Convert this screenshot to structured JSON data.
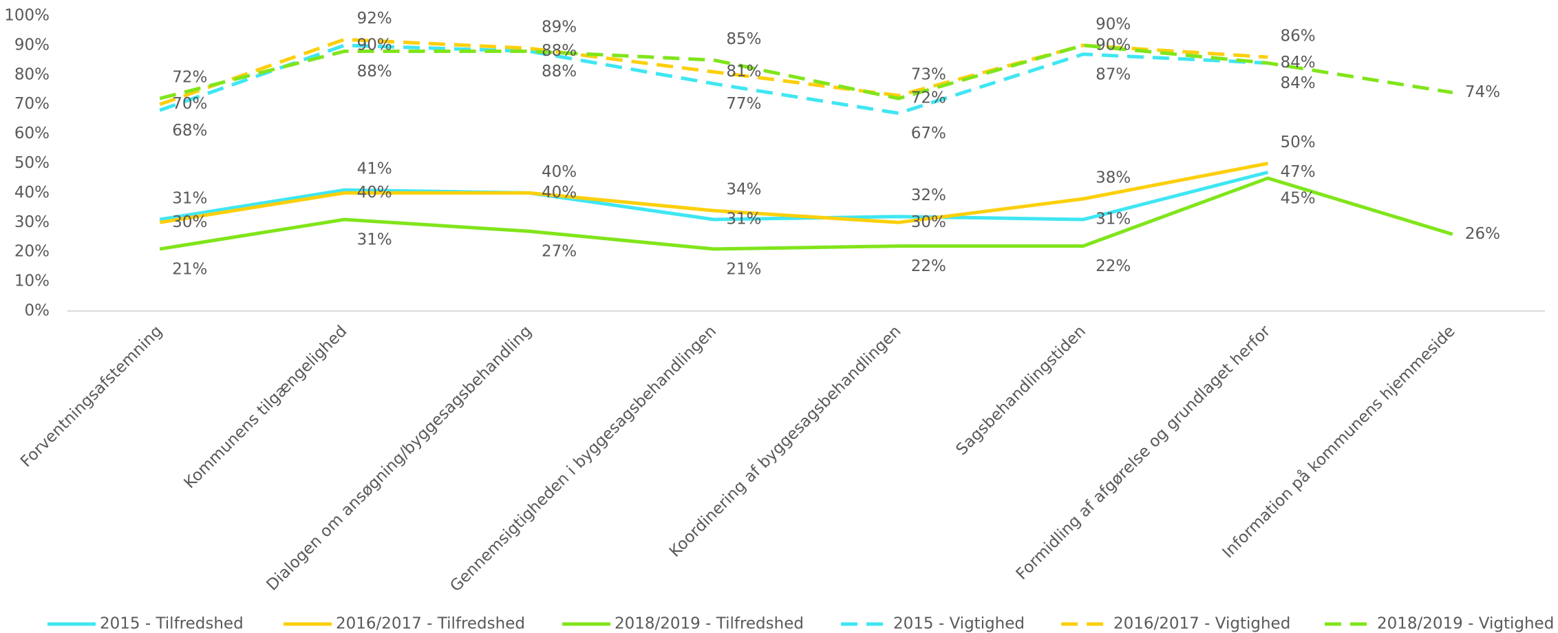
{
  "chart_data": {
    "type": "line",
    "categories": [
      "Forventningsafstemning",
      "Kommunens tilgængelighed",
      "Dialogen om ansøgning/byggesagsbehandling",
      "Gennemsigtigheden i byggesagsbehandlingen",
      "Koordinering af byggesagsbehandlingen",
      "Sagsbehandlingstiden",
      "Formidling af afgørelse og grundlaget herfor",
      "Information på kommunens hjemmeside"
    ],
    "series": [
      {
        "name": "2015 - Tilfredshed",
        "color": "#3fe6f2",
        "dashed": false,
        "values": [
          31,
          41,
          40,
          31,
          32,
          31,
          47,
          null
        ],
        "value_labels": [
          "31%",
          "41%",
          "40%",
          "31%",
          "32%",
          "31%",
          "47%",
          null
        ]
      },
      {
        "name": "2016/2017 - Tilfredshed",
        "color": "#fccf0b",
        "dashed": false,
        "values": [
          30,
          40,
          40,
          34,
          30,
          38,
          50,
          null
        ],
        "value_labels": [
          "30%",
          "40%",
          "40%",
          "34%",
          "30%",
          "38%",
          "50%",
          null
        ]
      },
      {
        "name": "2018/2019 - Tilfredshed",
        "color": "#80e51a",
        "dashed": false,
        "values": [
          21,
          31,
          27,
          21,
          22,
          22,
          45,
          26
        ],
        "value_labels": [
          "21%",
          "31%",
          "27%",
          "21%",
          "22%",
          "22%",
          "45%",
          "26%"
        ]
      },
      {
        "name": "2015 - Vigtighed",
        "color": "#3fe6f2",
        "dashed": true,
        "values": [
          68,
          90,
          88,
          77,
          67,
          87,
          84,
          null
        ],
        "value_labels": [
          "68%",
          "90%",
          "88%",
          "77%",
          "67%",
          "87%",
          "84%",
          null
        ]
      },
      {
        "name": "2016/2017 - Vigtighed",
        "color": "#fccf0b",
        "dashed": true,
        "values": [
          70,
          92,
          89,
          81,
          73,
          90,
          86,
          null
        ],
        "value_labels": [
          "70%",
          "92%",
          "89%",
          "81%",
          "73%",
          "90%",
          "86%",
          null
        ]
      },
      {
        "name": "2018/2019 - Vigtighed",
        "color": "#80e51a",
        "dashed": true,
        "values": [
          72,
          88,
          88,
          85,
          72,
          90,
          84,
          74
        ],
        "value_labels": [
          "72%",
          "88%",
          "88%",
          "85%",
          "72%",
          "90%",
          "84%",
          "74%"
        ]
      }
    ],
    "ylim": [
      0,
      100
    ],
    "yticks": [
      {
        "value": 0,
        "label": "0%"
      },
      {
        "value": 10,
        "label": "10%"
      },
      {
        "value": 20,
        "label": "20%"
      },
      {
        "value": 30,
        "label": "30%"
      },
      {
        "value": 40,
        "label": "40%"
      },
      {
        "value": 50,
        "label": "50%"
      },
      {
        "value": 60,
        "label": "60%"
      },
      {
        "value": 70,
        "label": "70%"
      },
      {
        "value": 80,
        "label": "80%"
      },
      {
        "value": 90,
        "label": "90%"
      },
      {
        "value": 100,
        "label": "100%"
      }
    ],
    "grid": false,
    "legend": "bottom"
  }
}
